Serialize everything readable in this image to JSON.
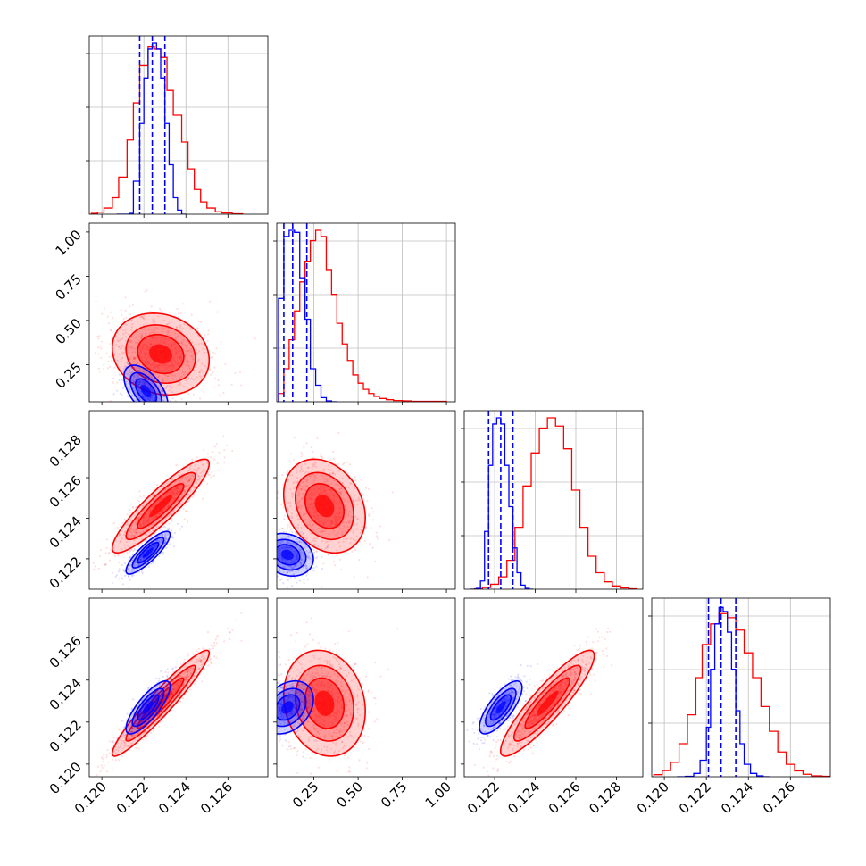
{
  "chart_data": {
    "type": "corner",
    "title": "",
    "grid": true,
    "colors": {
      "series_a": "#0000ff",
      "series_b": "#ff0000"
    },
    "series": [
      {
        "color": "#0000ff"
      },
      {
        "color": "#ff0000"
      }
    ],
    "parameters": [
      {
        "range": [
          0.1194,
          0.1279
        ],
        "ticks": [
          0.12,
          0.122,
          0.124,
          0.126
        ],
        "tick_labels": [
          "0.120",
          "0.122",
          "0.124",
          "0.126"
        ]
      },
      {
        "range": [
          0.04,
          1.05
        ],
        "ticks": [
          0.25,
          0.5,
          0.75,
          1.0
        ],
        "tick_labels": [
          "0.25",
          "0.50",
          "0.75",
          "1.00"
        ]
      },
      {
        "range": [
          0.1205,
          0.1293
        ],
        "ticks": [
          0.122,
          0.124,
          0.126,
          0.128
        ],
        "tick_labels": [
          "0.122",
          "0.124",
          "0.126",
          "0.128"
        ]
      },
      {
        "range": [
          0.1194,
          0.1279
        ],
        "ticks": [
          0.12,
          0.122,
          0.124,
          0.126
        ],
        "tick_labels": [
          "0.120",
          "0.122",
          "0.124",
          "0.126"
        ]
      }
    ],
    "histograms": [
      {
        "blue": {
          "quantiles": [
            0.1218,
            0.1224,
            0.123
          ],
          "bins": [
            [
              0.1207,
              0
            ],
            [
              0.1211,
              0
            ],
            [
              0.1213,
              2
            ],
            [
              0.1215,
              80
            ],
            [
              0.1218,
              220
            ],
            [
              0.122,
              330
            ],
            [
              0.1222,
              400
            ],
            [
              0.1224,
              415
            ],
            [
              0.1226,
              400
            ],
            [
              0.1228,
              330
            ],
            [
              0.123,
              220
            ],
            [
              0.1232,
              120
            ],
            [
              0.1234,
              40
            ],
            [
              0.1236,
              10
            ],
            [
              0.1238,
              0
            ]
          ]
        },
        "red": {
          "bins": [
            [
              0.1195,
              2
            ],
            [
              0.1198,
              5
            ],
            [
              0.1201,
              15
            ],
            [
              0.1205,
              40
            ],
            [
              0.1208,
              90
            ],
            [
              0.1212,
              180
            ],
            [
              0.1215,
              270
            ],
            [
              0.1218,
              360
            ],
            [
              0.1222,
              405
            ],
            [
              0.1225,
              400
            ],
            [
              0.1228,
              380
            ],
            [
              0.1231,
              300
            ],
            [
              0.1234,
              240
            ],
            [
              0.1238,
              175
            ],
            [
              0.1241,
              110
            ],
            [
              0.1244,
              60
            ],
            [
              0.1247,
              30
            ],
            [
              0.125,
              15
            ],
            [
              0.1254,
              6
            ],
            [
              0.1257,
              3
            ],
            [
              0.1262,
              1
            ]
          ]
        }
      },
      {
        "blue": {
          "quantiles": [
            0.08,
            0.13,
            0.21
          ],
          "bins": [
            [
              0.05,
              250
            ],
            [
              0.08,
              400
            ],
            [
              0.11,
              415
            ],
            [
              0.14,
              410
            ],
            [
              0.17,
              300
            ],
            [
              0.2,
              200
            ],
            [
              0.23,
              80
            ],
            [
              0.26,
              40
            ],
            [
              0.29,
              10
            ],
            [
              0.32,
              2
            ],
            [
              0.35,
              0
            ]
          ]
        },
        "red": {
          "bins": [
            [
              0.05,
              20
            ],
            [
              0.08,
              80
            ],
            [
              0.11,
              150
            ],
            [
              0.14,
              220
            ],
            [
              0.17,
              290
            ],
            [
              0.2,
              340
            ],
            [
              0.23,
              390
            ],
            [
              0.26,
              415
            ],
            [
              0.29,
              400
            ],
            [
              0.32,
              320
            ],
            [
              0.35,
              260
            ],
            [
              0.38,
              190
            ],
            [
              0.41,
              140
            ],
            [
              0.44,
              100
            ],
            [
              0.47,
              65
            ],
            [
              0.5,
              45
            ],
            [
              0.53,
              30
            ],
            [
              0.56,
              20
            ],
            [
              0.59,
              13
            ],
            [
              0.62,
              8
            ],
            [
              0.66,
              5
            ],
            [
              0.7,
              3
            ],
            [
              0.75,
              2
            ],
            [
              0.8,
              1
            ],
            [
              0.9,
              1
            ]
          ]
        }
      },
      {
        "blue": {
          "quantiles": [
            0.1217,
            0.1223,
            0.1229
          ],
          "bins": [
            [
              0.1208,
              0
            ],
            [
              0.1211,
              2
            ],
            [
              0.1213,
              20
            ],
            [
              0.1215,
              140
            ],
            [
              0.1217,
              300
            ],
            [
              0.1219,
              400
            ],
            [
              0.1221,
              415
            ],
            [
              0.1223,
              400
            ],
            [
              0.1225,
              300
            ],
            [
              0.1227,
              200
            ],
            [
              0.1229,
              100
            ],
            [
              0.1231,
              40
            ],
            [
              0.1233,
              10
            ],
            [
              0.1235,
              2
            ],
            [
              0.1237,
              0
            ]
          ]
        },
        "red": {
          "bins": [
            [
              0.121,
              1
            ],
            [
              0.1214,
              4
            ],
            [
              0.1218,
              12
            ],
            [
              0.1222,
              30
            ],
            [
              0.1226,
              70
            ],
            [
              0.123,
              150
            ],
            [
              0.1234,
              250
            ],
            [
              0.1238,
              330
            ],
            [
              0.1242,
              390
            ],
            [
              0.1246,
              415
            ],
            [
              0.125,
              395
            ],
            [
              0.1254,
              340
            ],
            [
              0.1258,
              240
            ],
            [
              0.1262,
              150
            ],
            [
              0.1266,
              80
            ],
            [
              0.127,
              40
            ],
            [
              0.1274,
              18
            ],
            [
              0.1278,
              8
            ],
            [
              0.1282,
              3
            ],
            [
              0.1286,
              1
            ]
          ]
        }
      },
      {
        "blue": {
          "quantiles": [
            0.1221,
            0.1227,
            0.1234
          ],
          "bins": [
            [
              0.1206,
              0
            ],
            [
              0.121,
              1
            ],
            [
              0.1214,
              8
            ],
            [
              0.1217,
              40
            ],
            [
              0.122,
              120
            ],
            [
              0.1222,
              260
            ],
            [
              0.1224,
              370
            ],
            [
              0.1226,
              410
            ],
            [
              0.1228,
              400
            ],
            [
              0.123,
              350
            ],
            [
              0.1232,
              260
            ],
            [
              0.1234,
              160
            ],
            [
              0.1236,
              80
            ],
            [
              0.1238,
              30
            ],
            [
              0.1241,
              8
            ],
            [
              0.1244,
              2
            ],
            [
              0.1247,
              0
            ]
          ]
        },
        "red": {
          "bins": [
            [
              0.1195,
              5
            ],
            [
              0.1199,
              15
            ],
            [
              0.1203,
              35
            ],
            [
              0.1207,
              80
            ],
            [
              0.1211,
              150
            ],
            [
              0.1215,
              240
            ],
            [
              0.1218,
              320
            ],
            [
              0.1222,
              370
            ],
            [
              0.1226,
              395
            ],
            [
              0.123,
              385
            ],
            [
              0.1234,
              355
            ],
            [
              0.1238,
              300
            ],
            [
              0.1242,
              240
            ],
            [
              0.1246,
              170
            ],
            [
              0.125,
              110
            ],
            [
              0.1254,
              60
            ],
            [
              0.1258,
              30
            ],
            [
              0.1262,
              14
            ],
            [
              0.1266,
              6
            ],
            [
              0.127,
              2
            ],
            [
              0.1275,
              1
            ]
          ]
        }
      }
    ],
    "pairs": [
      {
        "row": 1,
        "col": 0,
        "blue": {
          "mean": [
            0.1221,
            0.1
          ],
          "std": [
            0.0005,
            0.07
          ],
          "corr": -0.55
        },
        "red": {
          "mean": [
            0.1228,
            0.31
          ],
          "std": [
            0.0011,
            0.11
          ],
          "corr": -0.15
        }
      },
      {
        "row": 2,
        "col": 0,
        "blue": {
          "mean": [
            0.1222,
            0.1223
          ],
          "std": [
            0.0005,
            0.0005
          ],
          "corr": 0.85
        },
        "red": {
          "mean": [
            0.1228,
            0.1246
          ],
          "std": [
            0.0011,
            0.0011
          ],
          "corr": 0.9
        }
      },
      {
        "row": 2,
        "col": 1,
        "blue": {
          "mean": [
            0.1,
            0.1222
          ],
          "std": [
            0.07,
            0.0005
          ],
          "corr": -0.2
        },
        "red": {
          "mean": [
            0.31,
            0.1246
          ],
          "std": [
            0.11,
            0.0011
          ],
          "corr": -0.25
        }
      },
      {
        "row": 3,
        "col": 0,
        "blue": {
          "mean": [
            0.1222,
            0.1227
          ],
          "std": [
            0.0005,
            0.0006
          ],
          "corr": 0.8
        },
        "red": {
          "mean": [
            0.1228,
            0.1229
          ],
          "std": [
            0.0011,
            0.0012
          ],
          "corr": 0.95
        }
      },
      {
        "row": 3,
        "col": 1,
        "blue": {
          "mean": [
            0.1,
            0.1227
          ],
          "std": [
            0.07,
            0.0006
          ],
          "corr": 0.3
        },
        "red": {
          "mean": [
            0.31,
            0.1229
          ],
          "std": [
            0.11,
            0.0012
          ],
          "corr": -0.15
        }
      },
      {
        "row": 3,
        "col": 2,
        "blue": {
          "mean": [
            0.1223,
            0.1227
          ],
          "std": [
            0.0005,
            0.0006
          ],
          "corr": 0.75
        },
        "red": {
          "mean": [
            0.1246,
            0.1229
          ],
          "std": [
            0.0011,
            0.0012
          ],
          "corr": 0.9
        }
      }
    ]
  }
}
